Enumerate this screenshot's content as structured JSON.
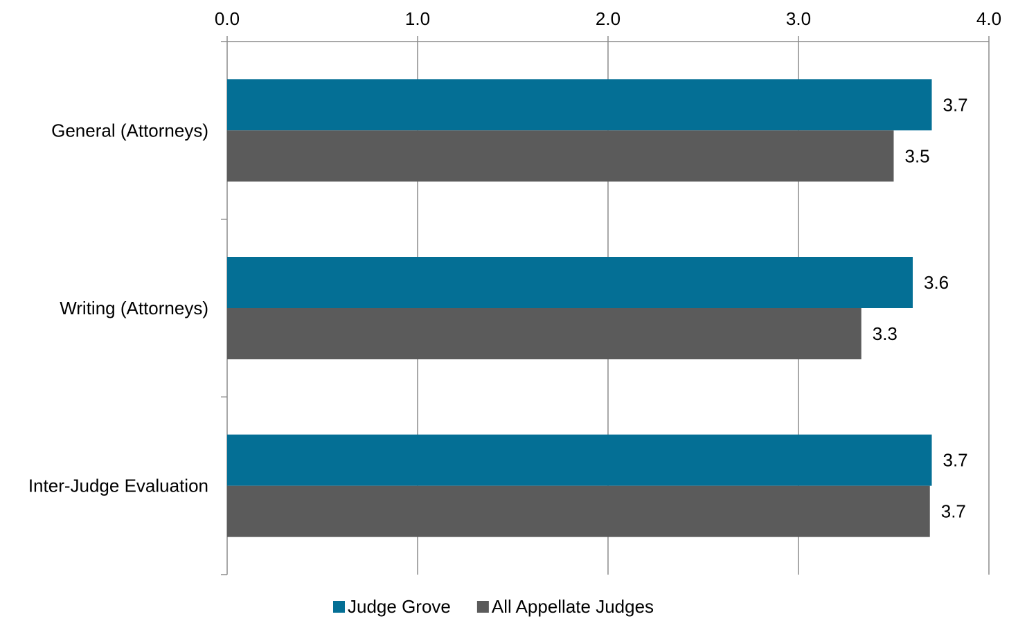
{
  "chart_data": {
    "type": "bar",
    "orientation": "horizontal",
    "categories": [
      "General (Attorneys)",
      "Writing (Attorneys)",
      "Inter-Judge Evaluation"
    ],
    "series": [
      {
        "name": "Judge Grove",
        "color": "#046f95",
        "values": [
          3.7,
          3.6,
          3.7
        ],
        "labels": [
          "3.7",
          "3.6",
          "3.7"
        ]
      },
      {
        "name": "All Appellate Judges",
        "color": "#5b5b5b",
        "values": [
          3.5,
          3.33,
          3.69
        ],
        "labels": [
          "3.5",
          "3.3",
          "3.7"
        ]
      }
    ],
    "xlim": [
      0,
      4
    ],
    "ticks": [
      0,
      1,
      2,
      3,
      4
    ],
    "tick_labels": [
      "0.0",
      "1.0",
      "2.0",
      "3.0",
      "4.0"
    ],
    "axis_position": "top",
    "grid": true,
    "legend_position": "bottom",
    "title": "",
    "xlabel": "",
    "ylabel": ""
  }
}
